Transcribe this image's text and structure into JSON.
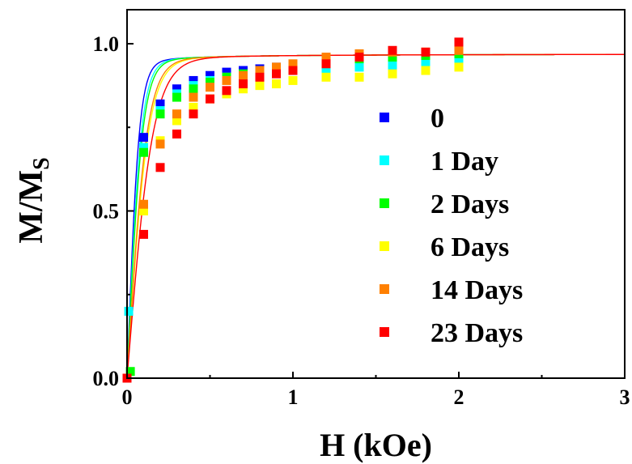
{
  "chart_data": {
    "type": "scatter",
    "title": "",
    "xlabel": "H (kOe)",
    "ylabel": "M/M",
    "ylabel_subscript": "S",
    "xlim": [
      0,
      3
    ],
    "ylim": [
      0,
      1.0
    ],
    "xticks": [
      "0",
      "1",
      "2",
      "3"
    ],
    "yticks": [
      "0.0",
      "0.5",
      "1.0"
    ],
    "grid": false,
    "legend_position": "right",
    "series": [
      {
        "name": "0",
        "color": "#0000ff",
        "x": [
          0,
          0.1,
          0.2,
          0.3,
          0.4,
          0.5,
          0.6,
          0.7,
          0.8,
          0.9,
          1.0,
          1.2,
          1.4,
          1.6,
          1.8,
          2.0
        ],
        "y": [
          0.0,
          0.72,
          0.82,
          0.865,
          0.89,
          0.905,
          0.915,
          0.92,
          0.925,
          0.93,
          0.935,
          0.94,
          0.945,
          0.95,
          0.955,
          0.96
        ],
        "fit": [
          0,
          0.97
        ]
      },
      {
        "name": "1 Day",
        "color": "#00ffff",
        "x": [
          0.01,
          0.1,
          0.2,
          0.3,
          0.4,
          0.5,
          0.6,
          0.7,
          0.8,
          0.9,
          1.0,
          1.2,
          1.4,
          1.6,
          1.8,
          2.0
        ],
        "y": [
          0.2,
          0.69,
          0.8,
          0.85,
          0.875,
          0.89,
          0.9,
          0.905,
          0.91,
          0.915,
          0.92,
          0.925,
          0.93,
          0.935,
          0.94,
          0.945
        ],
        "fit": [
          0,
          0.97
        ]
      },
      {
        "name": "2 Days",
        "color": "#00ff00",
        "x": [
          0.02,
          0.1,
          0.2,
          0.3,
          0.4,
          0.5,
          0.6,
          0.7,
          0.8,
          0.9,
          1.0,
          1.2,
          1.4,
          1.6,
          1.8,
          2.0
        ],
        "y": [
          0.02,
          0.675,
          0.79,
          0.84,
          0.865,
          0.885,
          0.9,
          0.91,
          0.92,
          0.925,
          0.935,
          0.945,
          0.955,
          0.96,
          0.965,
          0.97
        ],
        "fit": [
          0,
          0.97
        ]
      },
      {
        "name": "6 Days",
        "color": "#ffff00",
        "x": [
          0,
          0.1,
          0.2,
          0.3,
          0.4,
          0.5,
          0.6,
          0.7,
          0.8,
          0.9,
          1.0,
          1.2,
          1.4,
          1.6,
          1.8,
          2.0
        ],
        "y": [
          0.0,
          0.5,
          0.71,
          0.77,
          0.81,
          0.835,
          0.85,
          0.865,
          0.875,
          0.88,
          0.89,
          0.9,
          0.9,
          0.91,
          0.92,
          0.93
        ],
        "fit": [
          0,
          0.97
        ]
      },
      {
        "name": "14 Days",
        "color": "#ff8000",
        "x": [
          0,
          0.1,
          0.2,
          0.3,
          0.4,
          0.5,
          0.6,
          0.7,
          0.8,
          0.9,
          1.0,
          1.2,
          1.4,
          1.6,
          1.8,
          2.0
        ],
        "y": [
          0.0,
          0.52,
          0.7,
          0.79,
          0.84,
          0.87,
          0.89,
          0.905,
          0.92,
          0.93,
          0.94,
          0.96,
          0.97,
          0.975,
          0.975,
          0.98
        ],
        "fit": [
          0,
          0.97
        ]
      },
      {
        "name": "23 Days",
        "color": "#ff0000",
        "x": [
          0,
          0.1,
          0.2,
          0.3,
          0.4,
          0.5,
          0.6,
          0.7,
          0.8,
          0.9,
          1.0,
          1.2,
          1.4,
          1.6,
          1.8,
          2.0
        ],
        "y": [
          0.0,
          0.43,
          0.63,
          0.73,
          0.79,
          0.835,
          0.86,
          0.88,
          0.9,
          0.91,
          0.92,
          0.94,
          0.96,
          0.98,
          0.975,
          1.005
        ],
        "fit": [
          0,
          0.97
        ]
      }
    ]
  }
}
